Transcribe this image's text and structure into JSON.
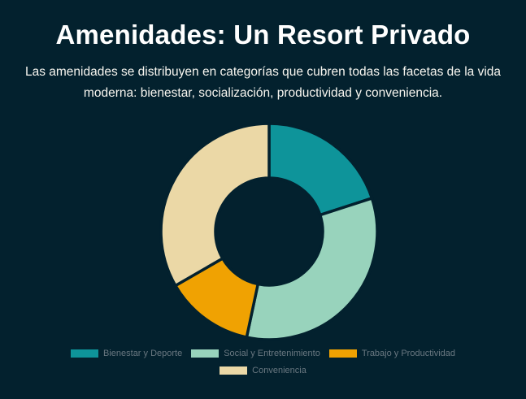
{
  "page": {
    "background_color": "#03212e",
    "title": "Amenidades: Un Resort Privado",
    "title_color": "#ffffff",
    "subtitle": "Las amenidades se distribuyen en categorías que cubren todas las facetas de la vida moderna: bienestar, socialización, productividad y conveniencia.",
    "subtitle_color": "#f8f6f0"
  },
  "chart_data": {
    "type": "pie",
    "variant": "donut",
    "title": "Amenidades: Un Resort Privado",
    "categories": [
      "Bienestar y Deporte",
      "Social y Entretenimiento",
      "Trabajo y Productividad",
      "Conveniencia"
    ],
    "values": [
      3,
      5,
      2,
      5
    ],
    "percentages": [
      20.0,
      33.3,
      13.3,
      33.3
    ],
    "colors": [
      "#0e949a",
      "#98d3bc",
      "#f0a202",
      "#ebd8a6"
    ],
    "start_angle_deg": 0,
    "direction": "clockwise",
    "inner_radius_ratio": 0.49,
    "segment_border_color": "#03212e",
    "legend_position": "bottom",
    "data_labels_shown": false
  },
  "legend": {
    "text_color": "#697780",
    "items": [
      {
        "label": "Bienestar y Deporte",
        "color": "#0e949a"
      },
      {
        "label": "Social y Entretenimiento",
        "color": "#98d3bc"
      },
      {
        "label": "Trabajo y Productividad",
        "color": "#f0a202"
      },
      {
        "label": "Conveniencia",
        "color": "#ebd8a6"
      }
    ]
  }
}
